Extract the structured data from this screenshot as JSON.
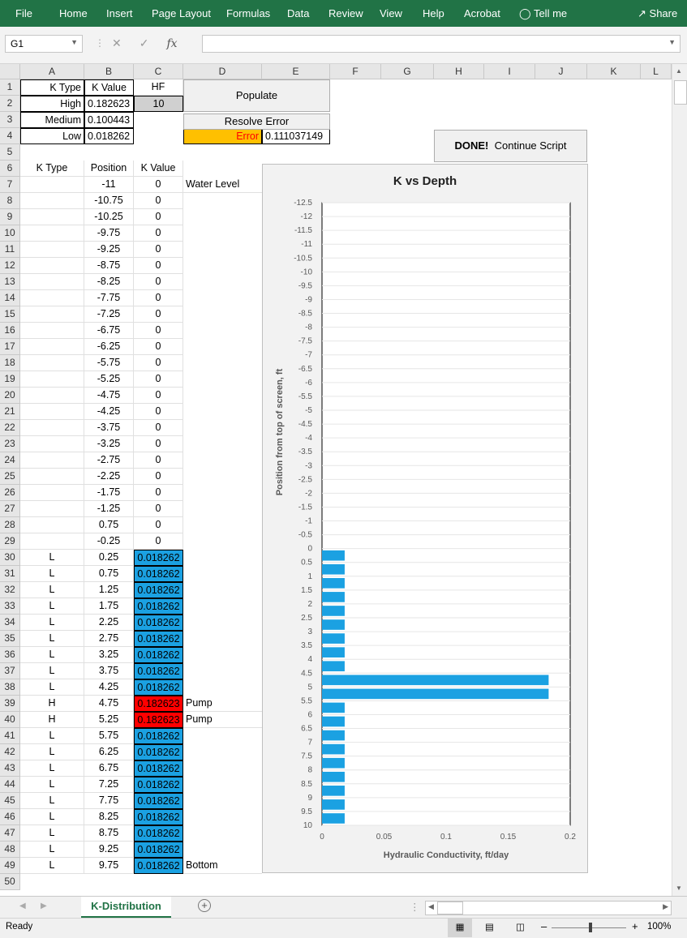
{
  "ribbon": {
    "tabs": [
      "File",
      "Home",
      "Insert",
      "Page Layout",
      "Formulas",
      "Data",
      "Review",
      "View",
      "Help",
      "Acrobat",
      "Tell me"
    ],
    "share": "Share",
    "colors": {
      "ribbon_bg": "#217346"
    }
  },
  "formula_bar": {
    "name_box": "G1",
    "fx": "fx",
    "value": ""
  },
  "columns": [
    "A",
    "B",
    "C",
    "D",
    "E",
    "F",
    "G",
    "H",
    "I",
    "J",
    "K",
    "L"
  ],
  "top_table": {
    "headers": [
      "K Type",
      "K Value",
      "HF"
    ],
    "rows": [
      {
        "type": "High",
        "value": "0.182623",
        "hf": "10"
      },
      {
        "type": "Medium",
        "value": "0.100443"
      },
      {
        "type": "Low",
        "value": "0.018262"
      }
    ]
  },
  "buttons": {
    "populate": "Populate",
    "resolve": "Resolve Error",
    "done_bold": "DONE!",
    "done_rest": "Continue Script"
  },
  "error_row": {
    "label": "Error",
    "value": "0.111037149"
  },
  "list_headers": [
    "K Type",
    "Position",
    "K Value"
  ],
  "list_rows": [
    {
      "r": 7,
      "type": "",
      "pos": "-11",
      "k": "0",
      "note": "Water Level"
    },
    {
      "r": 8,
      "type": "",
      "pos": "-10.75",
      "k": "0"
    },
    {
      "r": 9,
      "type": "",
      "pos": "-10.25",
      "k": "0"
    },
    {
      "r": 10,
      "type": "",
      "pos": "-9.75",
      "k": "0"
    },
    {
      "r": 11,
      "type": "",
      "pos": "-9.25",
      "k": "0"
    },
    {
      "r": 12,
      "type": "",
      "pos": "-8.75",
      "k": "0"
    },
    {
      "r": 13,
      "type": "",
      "pos": "-8.25",
      "k": "0"
    },
    {
      "r": 14,
      "type": "",
      "pos": "-7.75",
      "k": "0"
    },
    {
      "r": 15,
      "type": "",
      "pos": "-7.25",
      "k": "0"
    },
    {
      "r": 16,
      "type": "",
      "pos": "-6.75",
      "k": "0"
    },
    {
      "r": 17,
      "type": "",
      "pos": "-6.25",
      "k": "0"
    },
    {
      "r": 18,
      "type": "",
      "pos": "-5.75",
      "k": "0"
    },
    {
      "r": 19,
      "type": "",
      "pos": "-5.25",
      "k": "0"
    },
    {
      "r": 20,
      "type": "",
      "pos": "-4.75",
      "k": "0"
    },
    {
      "r": 21,
      "type": "",
      "pos": "-4.25",
      "k": "0"
    },
    {
      "r": 22,
      "type": "",
      "pos": "-3.75",
      "k": "0"
    },
    {
      "r": 23,
      "type": "",
      "pos": "-3.25",
      "k": "0"
    },
    {
      "r": 24,
      "type": "",
      "pos": "-2.75",
      "k": "0"
    },
    {
      "r": 25,
      "type": "",
      "pos": "-2.25",
      "k": "0"
    },
    {
      "r": 26,
      "type": "",
      "pos": "-1.75",
      "k": "0"
    },
    {
      "r": 27,
      "type": "",
      "pos": "-1.25",
      "k": "0"
    },
    {
      "r": 28,
      "type": "",
      "pos": "0.75",
      "k": "0"
    },
    {
      "r": 29,
      "type": "",
      "pos": "-0.25",
      "k": "0"
    },
    {
      "r": 30,
      "type": "L",
      "pos": "0.25",
      "k": "0.018262",
      "fill": "blue"
    },
    {
      "r": 31,
      "type": "L",
      "pos": "0.75",
      "k": "0.018262",
      "fill": "blue"
    },
    {
      "r": 32,
      "type": "L",
      "pos": "1.25",
      "k": "0.018262",
      "fill": "blue"
    },
    {
      "r": 33,
      "type": "L",
      "pos": "1.75",
      "k": "0.018262",
      "fill": "blue"
    },
    {
      "r": 34,
      "type": "L",
      "pos": "2.25",
      "k": "0.018262",
      "fill": "blue"
    },
    {
      "r": 35,
      "type": "L",
      "pos": "2.75",
      "k": "0.018262",
      "fill": "blue"
    },
    {
      "r": 36,
      "type": "L",
      "pos": "3.25",
      "k": "0.018262",
      "fill": "blue"
    },
    {
      "r": 37,
      "type": "L",
      "pos": "3.75",
      "k": "0.018262",
      "fill": "blue"
    },
    {
      "r": 38,
      "type": "L",
      "pos": "4.25",
      "k": "0.018262",
      "fill": "blue"
    },
    {
      "r": 39,
      "type": "H",
      "pos": "4.75",
      "k": "0.182623",
      "fill": "red",
      "note": "Pump"
    },
    {
      "r": 40,
      "type": "H",
      "pos": "5.25",
      "k": "0.182623",
      "fill": "red",
      "note": "Pump"
    },
    {
      "r": 41,
      "type": "L",
      "pos": "5.75",
      "k": "0.018262",
      "fill": "blue"
    },
    {
      "r": 42,
      "type": "L",
      "pos": "6.25",
      "k": "0.018262",
      "fill": "blue"
    },
    {
      "r": 43,
      "type": "L",
      "pos": "6.75",
      "k": "0.018262",
      "fill": "blue"
    },
    {
      "r": 44,
      "type": "L",
      "pos": "7.25",
      "k": "0.018262",
      "fill": "blue"
    },
    {
      "r": 45,
      "type": "L",
      "pos": "7.75",
      "k": "0.018262",
      "fill": "blue"
    },
    {
      "r": 46,
      "type": "L",
      "pos": "8.25",
      "k": "0.018262",
      "fill": "blue"
    },
    {
      "r": 47,
      "type": "L",
      "pos": "8.75",
      "k": "0.018262",
      "fill": "blue"
    },
    {
      "r": 48,
      "type": "L",
      "pos": "9.25",
      "k": "0.018262",
      "fill": "blue"
    },
    {
      "r": 49,
      "type": "L",
      "pos": "9.75",
      "k": "0.018262",
      "fill": "blue",
      "note": "Bottom"
    }
  ],
  "colors": {
    "low_fill": "#1ba1e2",
    "high_fill": "#ff0000",
    "error_fill": "#ffc000",
    "error_text": "#ff0000",
    "bar": "#1ba1e2"
  },
  "chart_data": {
    "type": "bar",
    "orientation": "horizontal",
    "title": "K vs Depth",
    "xlabel": "Hydraulic Conductivity, ft/day",
    "ylabel": "Position from top of screen, ft",
    "x_ticks": [
      "0",
      "0.05",
      "0.1",
      "0.15",
      "0.2"
    ],
    "xlim": [
      0,
      0.2
    ],
    "y_ticks": [
      "-12.5",
      "-12",
      "-11.5",
      "-11",
      "-10.5",
      "-10",
      "-9.5",
      "-9",
      "-8.5",
      "-8",
      "-7.5",
      "-7",
      "-6.5",
      "-6",
      "-5.5",
      "-5",
      "-4.5",
      "-4",
      "-3.5",
      "-3",
      "-2.5",
      "-2",
      "-1.5",
      "-1",
      "-0.5",
      "0",
      "0.5",
      "1",
      "1.5",
      "2",
      "2.5",
      "3",
      "3.5",
      "4",
      "4.5",
      "5",
      "5.5",
      "6",
      "6.5",
      "7",
      "7.5",
      "8",
      "8.5",
      "9",
      "9.5",
      "10"
    ],
    "ylim": [
      -12.5,
      10
    ],
    "y_inverted": true,
    "grid": true,
    "categories": [
      0.25,
      0.75,
      1.25,
      1.75,
      2.25,
      2.75,
      3.25,
      3.75,
      4.25,
      4.75,
      5.25,
      5.75,
      6.25,
      6.75,
      7.25,
      7.75,
      8.25,
      8.75,
      9.25,
      9.75
    ],
    "values": [
      0.018262,
      0.018262,
      0.018262,
      0.018262,
      0.018262,
      0.018262,
      0.018262,
      0.018262,
      0.018262,
      0.182623,
      0.182623,
      0.018262,
      0.018262,
      0.018262,
      0.018262,
      0.018262,
      0.018262,
      0.018262,
      0.018262,
      0.018262
    ]
  },
  "sheet_tab": "K-Distribution",
  "status": {
    "ready": "Ready",
    "zoom": "100%"
  }
}
